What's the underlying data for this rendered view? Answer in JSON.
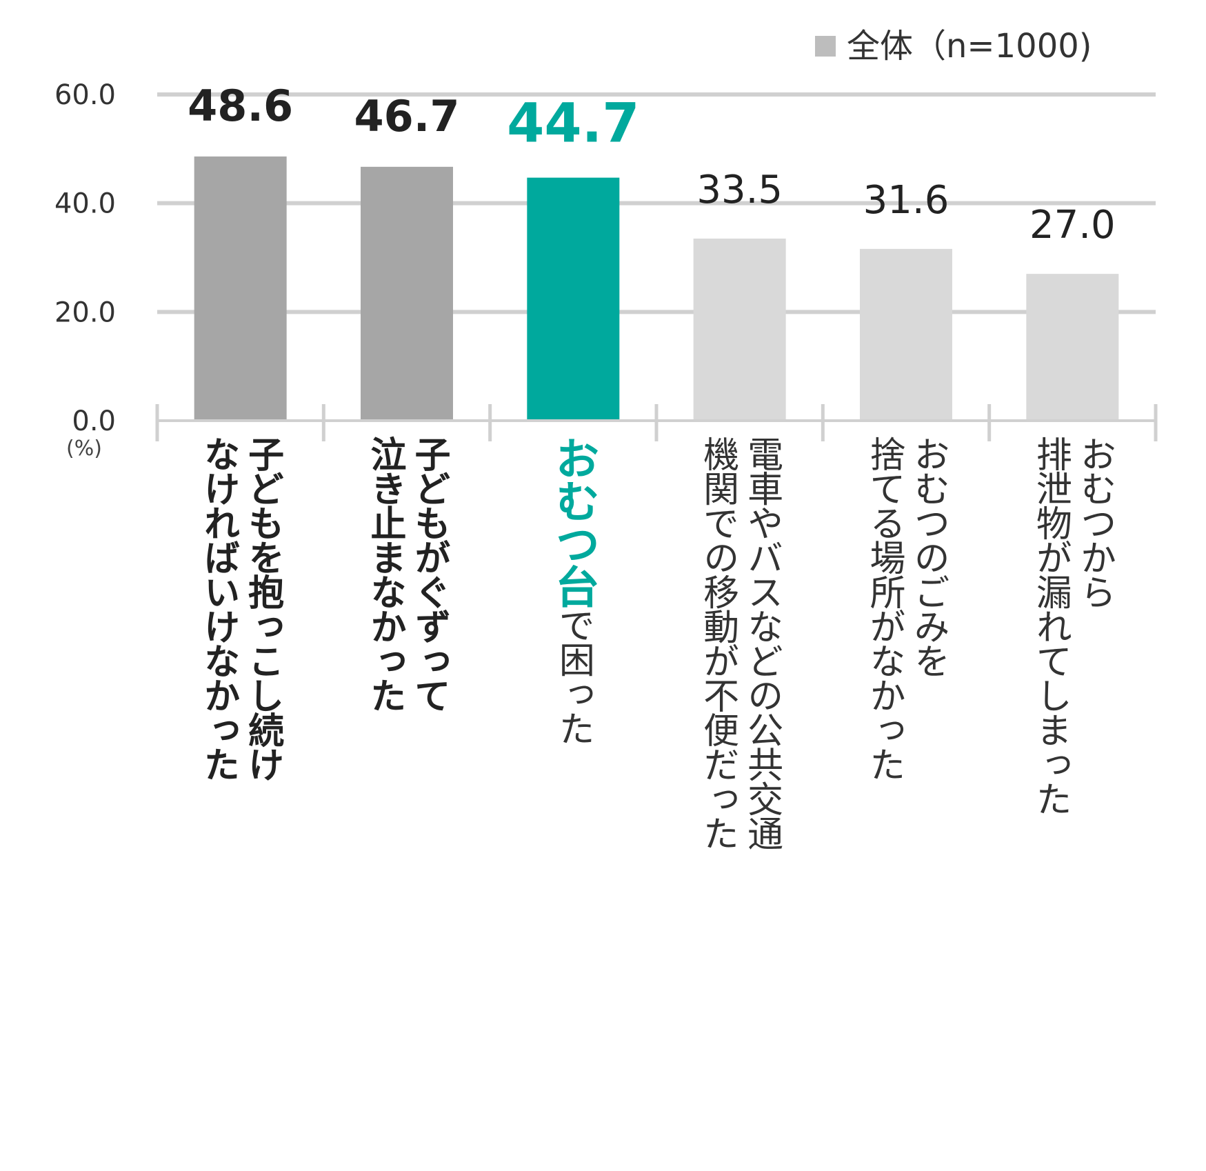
{
  "chart_data": {
    "type": "bar",
    "legend": {
      "label": "全体（n=1000)",
      "color": "#bdbdbd",
      "position": "top-right"
    },
    "y_unit_label": "(%)",
    "ylim": [
      0,
      60
    ],
    "y_ticks": [
      "60.0",
      "40.0",
      "20.0",
      "0.0"
    ],
    "y_tick_values": [
      60,
      40,
      20,
      0
    ],
    "grid": true,
    "categories": [
      {
        "lines": [
          "子どもを抱っこし続け",
          "なければいけなかった"
        ],
        "style": "bold"
      },
      {
        "lines": [
          "子どもがぐずって",
          "泣き止まなかった"
        ],
        "style": "bold"
      },
      {
        "lines": [
          "おむつ台で困った"
        ],
        "accent_part": "おむつ台",
        "rest_part": "で困った",
        "style": "accent"
      },
      {
        "lines": [
          "電車やバスなどの公共交通",
          "機関での移動が不便だった"
        ],
        "style": "normal"
      },
      {
        "lines": [
          "おむつのごみを",
          "捨てる場所がなかった"
        ],
        "style": "normal"
      },
      {
        "lines": [
          "おむつから",
          "排泄物が漏れてしまった"
        ],
        "style": "normal"
      }
    ],
    "values": [
      48.6,
      46.7,
      44.7,
      33.5,
      31.6,
      27.0
    ],
    "value_labels": [
      "48.6",
      "46.7",
      "44.7",
      "33.5",
      "31.6",
      "27.0"
    ],
    "bar_colors": [
      "#a6a6a6",
      "#a6a6a6",
      "#00a99d",
      "#d9d9d9",
      "#d9d9d9",
      "#d9d9d9"
    ],
    "label_colors": [
      "#222222",
      "#222222",
      "#00a99d",
      "#222222",
      "#222222",
      "#222222"
    ],
    "label_weights": [
      "bold",
      "bold",
      "bold",
      "normal",
      "normal",
      "normal"
    ]
  }
}
